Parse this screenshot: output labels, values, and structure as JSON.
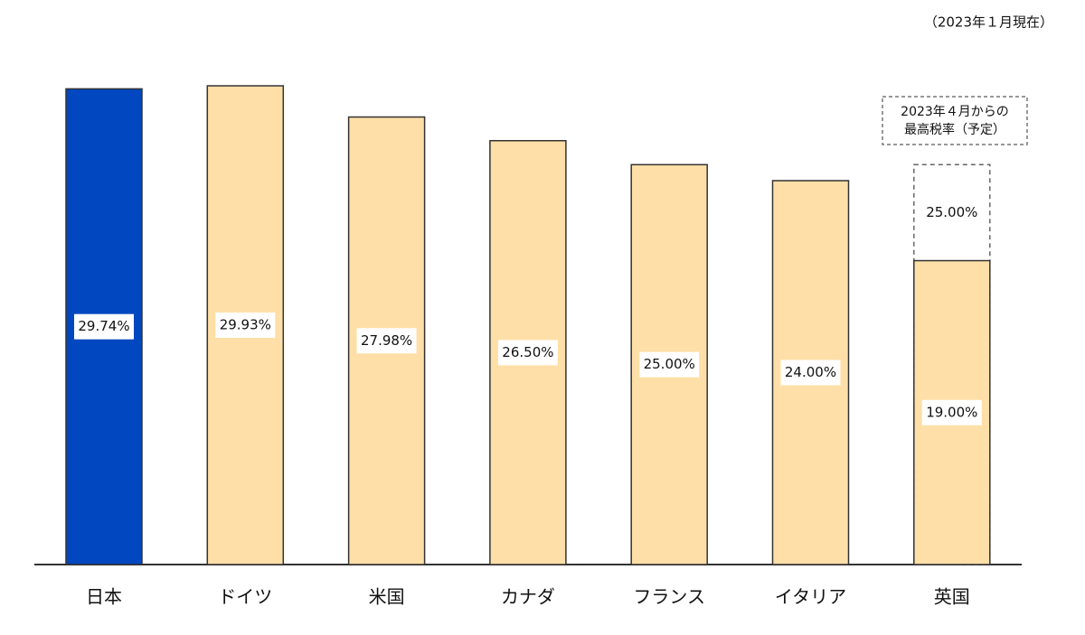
{
  "chart_data": {
    "type": "bar",
    "note": "（2023年１月現在）",
    "categories": [
      "日本",
      "ドイツ",
      "米国",
      "カナダ",
      "フランス",
      "イタリア",
      "英国"
    ],
    "values": [
      29.74,
      29.93,
      27.98,
      26.5,
      25.0,
      24.0,
      19.0
    ],
    "value_labels": [
      "29.74%",
      "29.93%",
      "27.98%",
      "26.50%",
      "25.00%",
      "24.00%",
      "19.00%"
    ],
    "colors": [
      "#0047c0",
      "#ffdfa8",
      "#ffdfa8",
      "#ffdfa8",
      "#ffdfa8",
      "#ffdfa8",
      "#ffdfa8"
    ],
    "planned_values": [
      null,
      null,
      null,
      null,
      null,
      null,
      25.0
    ],
    "planned_value_labels": [
      null,
      null,
      null,
      null,
      null,
      null,
      "25.00%"
    ],
    "annotation": [
      "2023年４月からの",
      "最高税率（予定）"
    ]
  }
}
